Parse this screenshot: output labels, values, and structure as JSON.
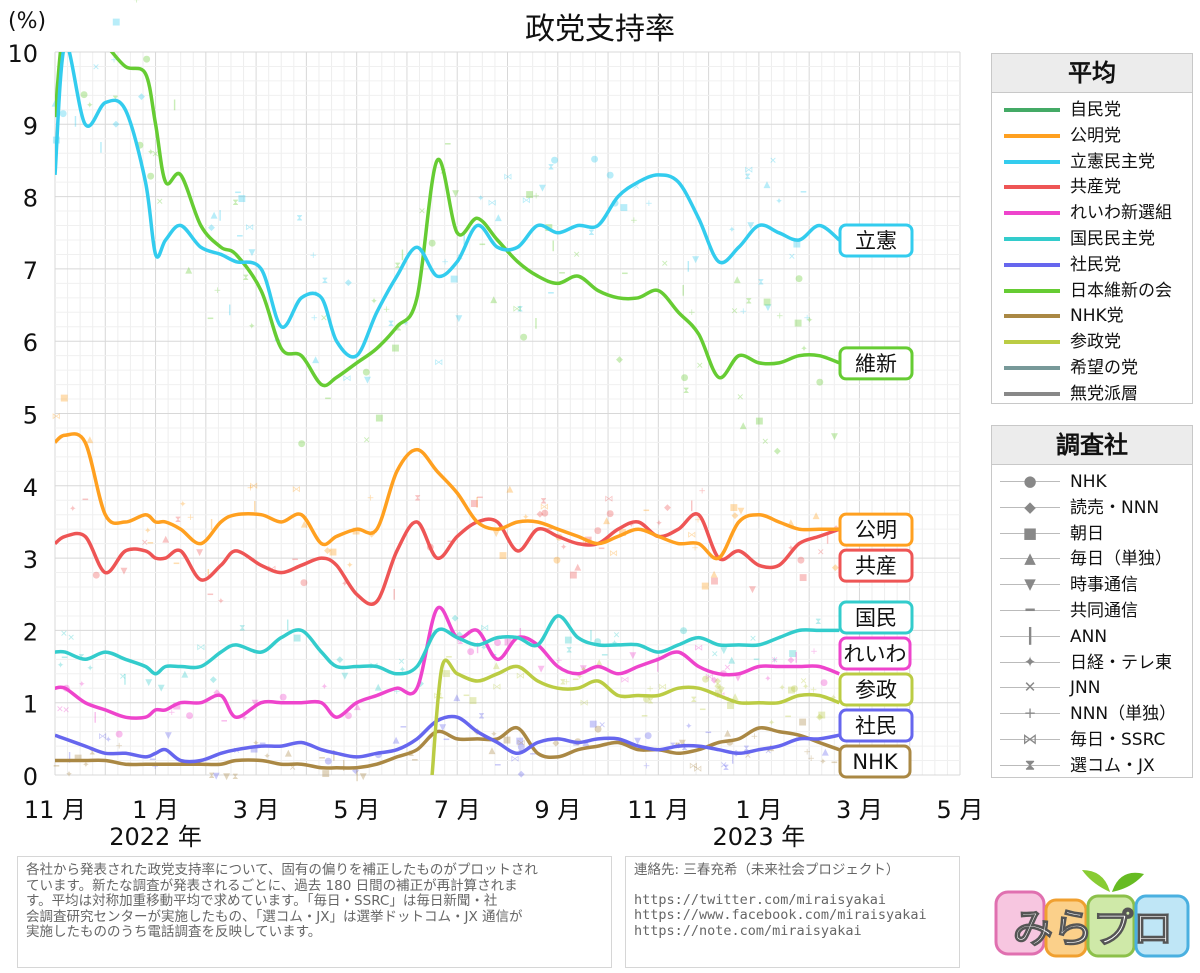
{
  "chart_data": {
    "type": "line",
    "title": "政党支持率",
    "ylabel": "(%)",
    "ylim": [
      0,
      10
    ],
    "yticks": [
      "0",
      "1",
      "2",
      "3",
      "4",
      "5",
      "6",
      "7",
      "8",
      "9",
      "10"
    ],
    "xlim": [
      0,
      16
    ],
    "x_tick_labels": [
      {
        "x": 0,
        "label": "11 月"
      },
      {
        "x": 2,
        "label": "1 月"
      },
      {
        "x": 4,
        "label": "3 月"
      },
      {
        "x": 6,
        "label": "5 月"
      },
      {
        "x": 8,
        "label": "7 月"
      },
      {
        "x": 10,
        "label": "9 月"
      },
      {
        "x": 12,
        "label": "11 月"
      },
      {
        "x": 14,
        "label": "1 月"
      },
      {
        "x": 16,
        "label": "3 月"
      },
      {
        "x": 18,
        "label": "5 月"
      }
    ],
    "year_labels": [
      {
        "x": 2,
        "label": "2022 年"
      },
      {
        "x": 14,
        "label": "2023 年"
      }
    ],
    "grid": true,
    "series": [
      {
        "name": "立憲民主党",
        "short": "立憲",
        "color": "#33ccee",
        "x": [
          0,
          0.2,
          0.6,
          1.0,
          1.4,
          1.8,
          2.0,
          2.2,
          2.5,
          2.9,
          3.3,
          3.6,
          4.1,
          4.5,
          4.9,
          5.3,
          5.6,
          6.0,
          6.4,
          6.8,
          7.2,
          7.6,
          8.0,
          8.4,
          8.8,
          9.2,
          9.6,
          10.0,
          10.4,
          10.8,
          11.2,
          11.6,
          12.0,
          12.4,
          12.8,
          13.2,
          13.6,
          14.0,
          14.4,
          14.8,
          15.2,
          15.6
        ],
        "values": [
          8.3,
          10.1,
          9.0,
          9.3,
          9.2,
          8.2,
          7.2,
          7.4,
          7.6,
          7.3,
          7.2,
          7.1,
          7.0,
          6.2,
          6.6,
          6.6,
          6.0,
          5.8,
          6.4,
          6.9,
          7.3,
          6.9,
          7.1,
          7.6,
          7.3,
          7.3,
          7.6,
          7.5,
          7.6,
          7.6,
          8.0,
          8.2,
          8.3,
          8.2,
          7.7,
          7.1,
          7.3,
          7.6,
          7.5,
          7.4,
          7.6,
          7.4
        ]
      },
      {
        "name": "日本維新の会",
        "short": "維新",
        "color": "#66cc33",
        "x": [
          0,
          0.2,
          0.6,
          1.0,
          1.4,
          1.8,
          2.0,
          2.2,
          2.5,
          2.9,
          3.3,
          3.6,
          4.1,
          4.5,
          4.9,
          5.3,
          5.6,
          6.0,
          6.4,
          6.8,
          7.2,
          7.6,
          8.0,
          8.4,
          8.8,
          9.2,
          9.6,
          10.0,
          10.4,
          10.8,
          11.2,
          11.6,
          12.0,
          12.4,
          12.8,
          13.2,
          13.6,
          14.0,
          14.4,
          14.8,
          15.2,
          15.6
        ],
        "values": [
          9.1,
          10.4,
          10.3,
          10.1,
          9.8,
          9.7,
          9.0,
          8.2,
          8.3,
          7.6,
          7.3,
          7.2,
          6.7,
          5.9,
          5.8,
          5.4,
          5.5,
          5.7,
          5.9,
          6.2,
          6.6,
          8.5,
          7.5,
          7.7,
          7.4,
          7.1,
          6.9,
          6.8,
          6.9,
          6.7,
          6.6,
          6.6,
          6.7,
          6.4,
          6.1,
          5.5,
          5.8,
          5.7,
          5.7,
          5.8,
          5.8,
          5.7
        ]
      },
      {
        "name": "公明党",
        "short": "公明",
        "color": "#ffa020",
        "x": [
          0,
          0.2,
          0.6,
          1.0,
          1.4,
          1.8,
          2.0,
          2.2,
          2.5,
          2.9,
          3.3,
          3.6,
          4.1,
          4.5,
          4.9,
          5.3,
          5.6,
          6.0,
          6.4,
          6.8,
          7.2,
          7.6,
          8.0,
          8.4,
          8.8,
          9.2,
          9.6,
          10.0,
          10.4,
          10.8,
          11.2,
          11.6,
          12.0,
          12.4,
          12.8,
          13.2,
          13.6,
          14.0,
          14.4,
          14.8,
          15.2,
          15.6
        ],
        "values": [
          4.6,
          4.7,
          4.6,
          3.6,
          3.5,
          3.6,
          3.5,
          3.5,
          3.4,
          3.2,
          3.5,
          3.6,
          3.6,
          3.5,
          3.6,
          3.2,
          3.3,
          3.4,
          3.4,
          4.2,
          4.5,
          4.2,
          3.9,
          3.5,
          3.4,
          3.5,
          3.5,
          3.4,
          3.3,
          3.2,
          3.3,
          3.4,
          3.3,
          3.2,
          3.2,
          3.0,
          3.5,
          3.6,
          3.5,
          3.4,
          3.4,
          3.4
        ]
      },
      {
        "name": "共産党",
        "short": "共産",
        "color": "#ee5555",
        "x": [
          0,
          0.2,
          0.6,
          1.0,
          1.4,
          1.8,
          2.0,
          2.2,
          2.5,
          2.9,
          3.3,
          3.6,
          4.1,
          4.5,
          4.9,
          5.3,
          5.6,
          6.0,
          6.4,
          6.8,
          7.2,
          7.6,
          8.0,
          8.4,
          8.8,
          9.2,
          9.6,
          10.0,
          10.4,
          10.8,
          11.2,
          11.6,
          12.0,
          12.4,
          12.8,
          13.2,
          13.6,
          14.0,
          14.4,
          14.8,
          15.2,
          15.6
        ],
        "values": [
          3.2,
          3.3,
          3.3,
          2.8,
          3.1,
          3.1,
          3.0,
          3.0,
          3.1,
          2.7,
          2.9,
          3.1,
          2.9,
          2.8,
          2.9,
          3.0,
          2.9,
          2.5,
          2.4,
          3.1,
          3.5,
          3.0,
          3.3,
          3.5,
          3.5,
          3.1,
          3.4,
          3.3,
          3.2,
          3.2,
          3.4,
          3.5,
          3.3,
          3.4,
          3.6,
          3.0,
          3.1,
          2.9,
          2.9,
          3.2,
          3.3,
          3.4
        ]
      },
      {
        "name": "国民民主党",
        "short": "国民",
        "color": "#33cccc",
        "x": [
          0,
          0.2,
          0.6,
          1.0,
          1.4,
          1.8,
          2.0,
          2.2,
          2.5,
          2.9,
          3.3,
          3.6,
          4.1,
          4.5,
          4.9,
          5.3,
          5.6,
          6.0,
          6.4,
          6.8,
          7.2,
          7.6,
          8.0,
          8.4,
          8.8,
          9.2,
          9.6,
          10.0,
          10.4,
          10.8,
          11.2,
          11.6,
          12.0,
          12.4,
          12.8,
          13.2,
          13.6,
          14.0,
          14.4,
          14.8,
          15.2,
          15.6
        ],
        "values": [
          1.7,
          1.7,
          1.6,
          1.7,
          1.6,
          1.5,
          1.4,
          1.5,
          1.5,
          1.5,
          1.7,
          1.8,
          1.7,
          1.9,
          2.0,
          1.7,
          1.5,
          1.5,
          1.5,
          1.4,
          1.5,
          2.0,
          1.9,
          1.8,
          1.9,
          1.9,
          1.8,
          2.2,
          1.9,
          1.8,
          1.8,
          1.8,
          1.7,
          1.8,
          1.9,
          1.8,
          1.8,
          1.8,
          1.9,
          2.0,
          2.0,
          2.0
        ]
      },
      {
        "name": "れいわ新選組",
        "short": "れいわ",
        "color": "#ee44cc",
        "x": [
          0,
          0.2,
          0.6,
          1.0,
          1.4,
          1.8,
          2.0,
          2.2,
          2.5,
          2.9,
          3.3,
          3.6,
          4.1,
          4.5,
          4.9,
          5.3,
          5.6,
          6.0,
          6.4,
          6.8,
          7.2,
          7.6,
          8.0,
          8.4,
          8.8,
          9.2,
          9.6,
          10.0,
          10.4,
          10.8,
          11.2,
          11.6,
          12.0,
          12.4,
          12.8,
          13.2,
          13.6,
          14.0,
          14.4,
          14.8,
          15.2,
          15.6
        ],
        "values": [
          1.2,
          1.2,
          1.0,
          0.9,
          0.8,
          0.8,
          0.9,
          0.9,
          1.0,
          1.0,
          1.1,
          0.8,
          1.0,
          1.0,
          1.0,
          1.0,
          0.8,
          1.0,
          1.1,
          1.2,
          1.2,
          2.3,
          1.9,
          2.0,
          1.6,
          1.9,
          1.8,
          1.5,
          1.4,
          1.5,
          1.4,
          1.5,
          1.6,
          1.7,
          1.5,
          1.4,
          1.4,
          1.5,
          1.5,
          1.5,
          1.5,
          1.4
        ]
      },
      {
        "name": "参政党",
        "short": "参政",
        "color": "#bbcc44",
        "x": [
          7.5,
          7.7,
          8.0,
          8.4,
          8.8,
          9.2,
          9.6,
          10.0,
          10.4,
          10.8,
          11.2,
          11.6,
          12.0,
          12.4,
          12.8,
          13.2,
          13.6,
          14.0,
          14.4,
          14.8,
          15.2,
          15.6
        ],
        "values": [
          0.0,
          1.5,
          1.4,
          1.3,
          1.4,
          1.5,
          1.3,
          1.2,
          1.2,
          1.3,
          1.1,
          1.1,
          1.1,
          1.2,
          1.2,
          1.1,
          1.0,
          1.0,
          1.0,
          1.1,
          1.1,
          1.0
        ]
      },
      {
        "name": "社民党",
        "short": "社民",
        "color": "#6666ee",
        "x": [
          0,
          0.2,
          0.6,
          1.0,
          1.4,
          1.8,
          2.0,
          2.2,
          2.5,
          2.9,
          3.3,
          3.6,
          4.1,
          4.5,
          4.9,
          5.3,
          5.6,
          6.0,
          6.4,
          6.8,
          7.2,
          7.6,
          8.0,
          8.4,
          8.8,
          9.2,
          9.6,
          10.0,
          10.4,
          10.8,
          11.2,
          11.6,
          12.0,
          12.4,
          12.8,
          13.2,
          13.6,
          14.0,
          14.4,
          14.8,
          15.2,
          15.6
        ],
        "values": [
          0.55,
          0.5,
          0.4,
          0.3,
          0.3,
          0.25,
          0.3,
          0.35,
          0.2,
          0.2,
          0.3,
          0.35,
          0.4,
          0.4,
          0.45,
          0.35,
          0.3,
          0.25,
          0.3,
          0.35,
          0.5,
          0.75,
          0.8,
          0.6,
          0.45,
          0.3,
          0.45,
          0.5,
          0.45,
          0.5,
          0.5,
          0.4,
          0.35,
          0.4,
          0.4,
          0.35,
          0.3,
          0.35,
          0.4,
          0.5,
          0.5,
          0.55
        ]
      },
      {
        "name": "NHK党",
        "short": "NHK",
        "color": "#aa8844",
        "x": [
          0,
          0.2,
          0.6,
          1.0,
          1.4,
          1.8,
          2.0,
          2.2,
          2.5,
          2.9,
          3.3,
          3.6,
          4.1,
          4.5,
          4.9,
          5.3,
          5.6,
          6.0,
          6.4,
          6.8,
          7.2,
          7.6,
          8.0,
          8.4,
          8.8,
          9.2,
          9.6,
          10.0,
          10.4,
          10.8,
          11.2,
          11.6,
          12.0,
          12.4,
          12.8,
          13.2,
          13.6,
          14.0,
          14.4,
          14.8,
          15.2,
          15.6
        ],
        "values": [
          0.2,
          0.2,
          0.2,
          0.2,
          0.15,
          0.15,
          0.15,
          0.15,
          0.15,
          0.15,
          0.15,
          0.2,
          0.2,
          0.15,
          0.15,
          0.1,
          0.1,
          0.1,
          0.15,
          0.25,
          0.35,
          0.6,
          0.5,
          0.5,
          0.5,
          0.65,
          0.3,
          0.25,
          0.35,
          0.4,
          0.45,
          0.35,
          0.35,
          0.3,
          0.35,
          0.45,
          0.5,
          0.65,
          0.6,
          0.55,
          0.45,
          0.35
        ]
      }
    ]
  },
  "legend_avg": {
    "title": "平均",
    "items": [
      {
        "label": "自民党",
        "color": "#44aa66"
      },
      {
        "label": "公明党",
        "color": "#ffa020"
      },
      {
        "label": "立憲民主党",
        "color": "#33ccee"
      },
      {
        "label": "共産党",
        "color": "#ee5555"
      },
      {
        "label": "れいわ新選組",
        "color": "#ee44cc"
      },
      {
        "label": "国民民主党",
        "color": "#33cccc"
      },
      {
        "label": "社民党",
        "color": "#6666ee"
      },
      {
        "label": "日本維新の会",
        "color": "#66cc33"
      },
      {
        "label": "NHK党",
        "color": "#aa8844"
      },
      {
        "label": "参政党",
        "color": "#bbcc44"
      },
      {
        "label": "希望の党",
        "color": "#779999"
      },
      {
        "label": "無党派層",
        "color": "#888888"
      }
    ]
  },
  "legend_pollster": {
    "title": "調査社",
    "items": [
      {
        "label": "NHK",
        "marker": "●"
      },
      {
        "label": "読売・NNN",
        "marker": "◆"
      },
      {
        "label": "朝日",
        "marker": "■"
      },
      {
        "label": "毎日（単独）",
        "marker": "▲"
      },
      {
        "label": "時事通信",
        "marker": "▼"
      },
      {
        "label": "共同通信",
        "marker": "━"
      },
      {
        "label": "ANN",
        "marker": "┃"
      },
      {
        "label": "日経・テレ東",
        "marker": "✦"
      },
      {
        "label": "JNN",
        "marker": "✕"
      },
      {
        "label": "NNN（単独）",
        "marker": "+"
      },
      {
        "label": "毎日・SSRC",
        "marker": "⋈"
      },
      {
        "label": "選コム・JX",
        "marker": "⧗"
      }
    ]
  },
  "note": {
    "lines": [
      "各社から発表された政党支持率について、固有の偏りを補正したものがプロットされ",
      "ています。新たな調査が発表されるごとに、過去 180 日間の補正が再計算されま",
      "す。平均は対称加重移動平均で求めています。「毎日・SSRC」は毎日新聞・社",
      "会調査研究センターが実施したもの、「選コム・JX」は選挙ドットコム・JX 通信が",
      "実施したもののうち電話調査を反映しています。"
    ]
  },
  "contact": {
    "label": "連絡先: 三春充希（未来社会プロジェクト）",
    "links": [
      "https://twitter.com/miraisyakai",
      "https://www.facebook.com/miraisyakai",
      "https://note.com/miraisyakai"
    ]
  },
  "logo": {
    "text": "みらプロ"
  }
}
